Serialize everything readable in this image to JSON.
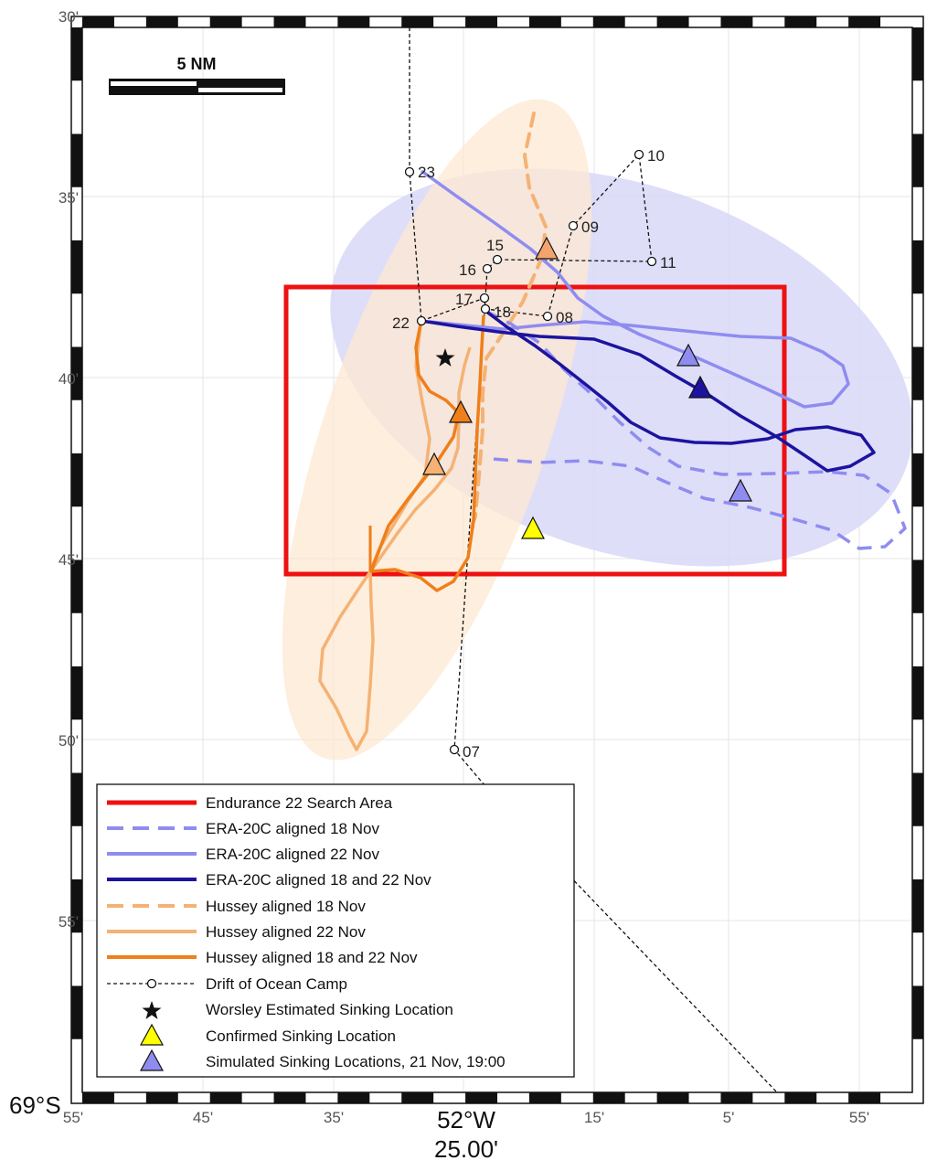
{
  "map": {
    "corner_lat_label": "69°S",
    "center_lon_label": "52°W",
    "center_lon_sub": "25.00'",
    "scale_label": "5 NM",
    "lat_ticks": [
      "30'",
      "35'",
      "40'",
      "45'",
      "50'",
      "55'"
    ],
    "lon_ticks": [
      "55'",
      "45'",
      "35'",
      "25'",
      "15'",
      "5'",
      "55'"
    ],
    "camp_labels": [
      "23",
      "10",
      "09",
      "15",
      "11",
      "16",
      "17",
      "18",
      "22",
      "08",
      "07"
    ],
    "colors": {
      "search_area": "#ee1111",
      "era_light": "#8f8cf0",
      "era_dark": "#1c139f",
      "hussey_light": "#f5b274",
      "hussey_dark": "#ef7f1a",
      "confirmed": "#ffff00",
      "ellipse_blue": "#d6d6f7",
      "ellipse_orange": "#fde8d2"
    }
  },
  "legend": {
    "items": [
      "Endurance 22 Search Area",
      "ERA-20C aligned 18 Nov",
      "ERA-20C aligned 22 Nov",
      "ERA-20C aligned 18 and 22 Nov",
      "Hussey aligned 18 Nov",
      "Hussey aligned 22 Nov",
      "Hussey aligned 18 and 22 Nov",
      "Drift of Ocean Camp",
      "Worsley Estimated Sinking Location",
      "Confirmed Sinking Location",
      "Simulated Sinking Locations, 21 Nov, 19:00"
    ]
  }
}
